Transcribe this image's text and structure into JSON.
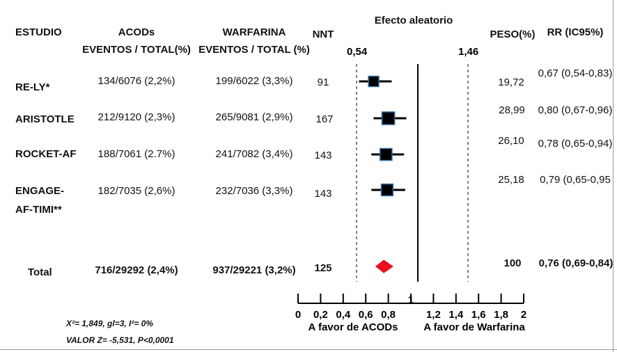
{
  "headers": {
    "study": "ESTUDIO",
    "acods_1": "ACODs",
    "acods_2": "EVENTOS / TOTAL(%)",
    "warf_1": "WARFARINA",
    "warf_2": "EVENTOS / TOTAL (%)",
    "nnt": "NNT",
    "effect": "Efecto aleatorio",
    "weight": "PESO(%)",
    "rr": "RR (IC95%)"
  },
  "rows": [
    {
      "study": "RE-LY*",
      "acods": "134/6076 (2,2%)",
      "warf": "199/6022 (3,3%)",
      "nnt": "91",
      "weight": "19,72",
      "rr": "0,67 (0,54-0,83)"
    },
    {
      "study": "ARISTOTLE",
      "acods": "212/9120 (2,3%)",
      "warf": "265/9081 (2,9%)",
      "nnt": "167",
      "weight": "28,99",
      "rr": "0,80 (0,67-0,96)"
    },
    {
      "study": "ROCKET-AF",
      "acods": "188/7061 (2.7%)",
      "warf": "241/7082 (3,4%)",
      "nnt": "143",
      "weight": "26,10",
      "rr": "0,78 (0,65-0,94)"
    },
    {
      "study_1": "ENGAGE-",
      "study_2": "AF-TIMI**",
      "acods": "182/7035 (2,6%)",
      "warf": "232/7036 (3,3%)",
      "nnt": "143",
      "weight": "25,18",
      "rr": "0,79 (0,65-0,95"
    }
  ],
  "total": {
    "study": "Total",
    "acods": "716/29292 (2,4%)",
    "warf": "937/29221 (3,2%)",
    "nnt": "125",
    "weight": "100",
    "rr": "0,76 (0,69-0,84)"
  },
  "stats": {
    "line1": "X²= 1,849, gl=3, I²= 0%",
    "line2": "VALOR Z= -5,531, P<0,0001"
  },
  "chart_data": {
    "type": "forest",
    "xlim": [
      0,
      2
    ],
    "x_ticks": [
      "0",
      "0,2",
      "0,4",
      "0,6",
      "0,8",
      "1",
      "1,2",
      "1,4",
      "1,6",
      "1,8",
      "2"
    ],
    "reference_line": 1,
    "dashed_lines": [
      0.54,
      1.46
    ],
    "dashed_labels": [
      "0,54",
      "1,46"
    ],
    "xlabel_left": "A favor de ACODs",
    "xlabel_right": "A favor de Warfarina",
    "title": "Efecto aleatorio",
    "studies": [
      {
        "name": "RE-LY*",
        "rr": 0.67,
        "lo": 0.54,
        "hi": 0.83,
        "weight": 19.72
      },
      {
        "name": "ARISTOTLE",
        "rr": 0.8,
        "lo": 0.67,
        "hi": 0.96,
        "weight": 28.99
      },
      {
        "name": "ROCKET-AF",
        "rr": 0.78,
        "lo": 0.65,
        "hi": 0.94,
        "weight": 26.1
      },
      {
        "name": "ENGAGE-AF-TIMI**",
        "rr": 0.79,
        "lo": 0.65,
        "hi": 0.95,
        "weight": 25.18
      }
    ],
    "pooled": {
      "rr": 0.76,
      "lo": 0.69,
      "hi": 0.84
    },
    "colors": {
      "marker": "#000000",
      "marker_outline": "#2f6fa8",
      "pooled": "#e8101c"
    }
  }
}
